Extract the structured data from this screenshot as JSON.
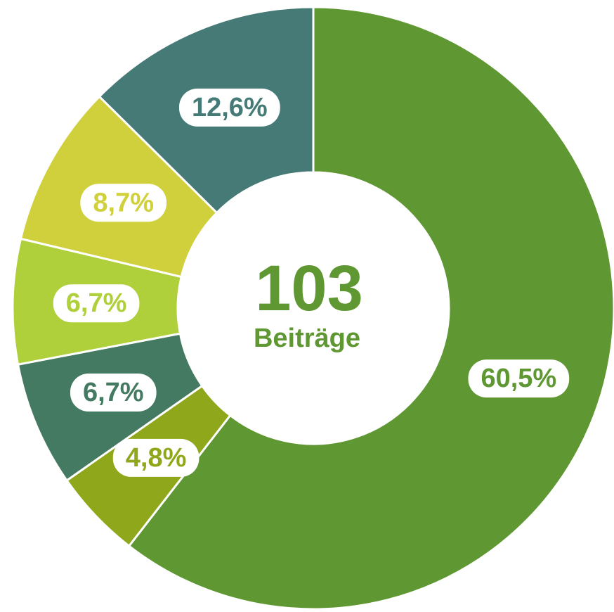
{
  "chart_data": {
    "type": "donut",
    "categories": [
      null,
      null,
      null,
      null,
      null,
      null
    ],
    "values": [
      60.5,
      4.8,
      6.7,
      6.7,
      8.7,
      12.6
    ],
    "value_labels": [
      "60,5%",
      "4,8%",
      "6,7%",
      "6,7%",
      "8,7%",
      "12,6%"
    ],
    "colors": [
      "#5f9732",
      "#8fa81b",
      "#457a62",
      "#afd03a",
      "#cfd03b",
      "#457a76"
    ],
    "center_value": "103",
    "center_label": "Beiträge"
  }
}
